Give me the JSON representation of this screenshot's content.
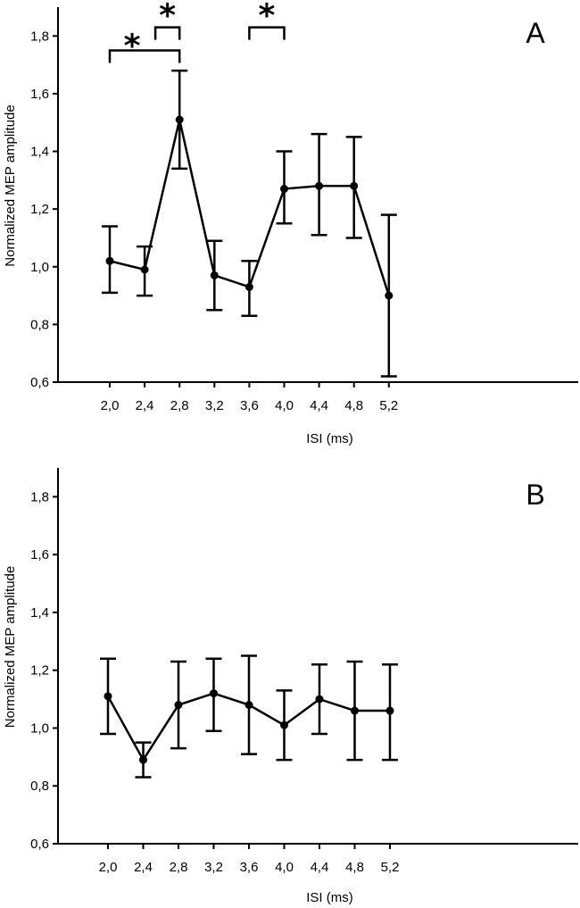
{
  "chart_data": [
    {
      "type": "line",
      "panel_label": "A",
      "xlabel": "ISI (ms)",
      "ylabel": "Normalized MEP amplitude",
      "ylim": [
        0.6,
        1.9
      ],
      "yticks": [
        "0,6",
        "0,8",
        "1,0",
        "1,2",
        "1,4",
        "1,6",
        "1,8"
      ],
      "yticks_values": [
        0.6,
        0.8,
        1.0,
        1.2,
        1.4,
        1.6,
        1.8
      ],
      "categories": [
        "2,0",
        "2,4",
        "2,8",
        "3,2",
        "3,6",
        "4,0",
        "4,4",
        "4,8",
        "5,2"
      ],
      "values": [
        1.02,
        0.99,
        1.51,
        0.97,
        0.93,
        1.27,
        1.28,
        1.28,
        0.9
      ],
      "error_low": [
        0.91,
        0.9,
        1.34,
        0.85,
        0.83,
        1.15,
        1.11,
        1.1,
        0.62
      ],
      "error_high": [
        1.14,
        1.07,
        1.68,
        1.09,
        1.02,
        1.4,
        1.46,
        1.45,
        1.18
      ],
      "significance": [
        {
          "from": 0,
          "to": 2,
          "y": 1.75,
          "label": "*"
        },
        {
          "from": 1.5,
          "to": 2,
          "y": 1.83,
          "label": "*"
        },
        {
          "from": 4,
          "to": 5,
          "y": 1.83,
          "label": "*"
        }
      ]
    },
    {
      "type": "line",
      "panel_label": "B",
      "xlabel": "ISI (ms)",
      "ylabel": "Normalized MEP amplitude",
      "ylim": [
        0.6,
        1.9
      ],
      "yticks": [
        "0,6",
        "0,8",
        "1,0",
        "1,2",
        "1,4",
        "1,6",
        "1,8"
      ],
      "yticks_values": [
        0.6,
        0.8,
        1.0,
        1.2,
        1.4,
        1.6,
        1.8
      ],
      "categories": [
        "2,0",
        "2,4",
        "2,8",
        "3,2",
        "3,6",
        "4,0",
        "4,4",
        "4,8",
        "5,2"
      ],
      "values": [
        1.11,
        0.89,
        1.08,
        1.12,
        1.08,
        1.01,
        1.1,
        1.06,
        1.06
      ],
      "error_low": [
        0.98,
        0.83,
        0.93,
        0.99,
        0.91,
        0.89,
        0.98,
        0.89,
        0.89
      ],
      "error_high": [
        1.24,
        0.95,
        1.23,
        1.24,
        1.25,
        1.13,
        1.22,
        1.23,
        1.22
      ],
      "significance": []
    }
  ]
}
